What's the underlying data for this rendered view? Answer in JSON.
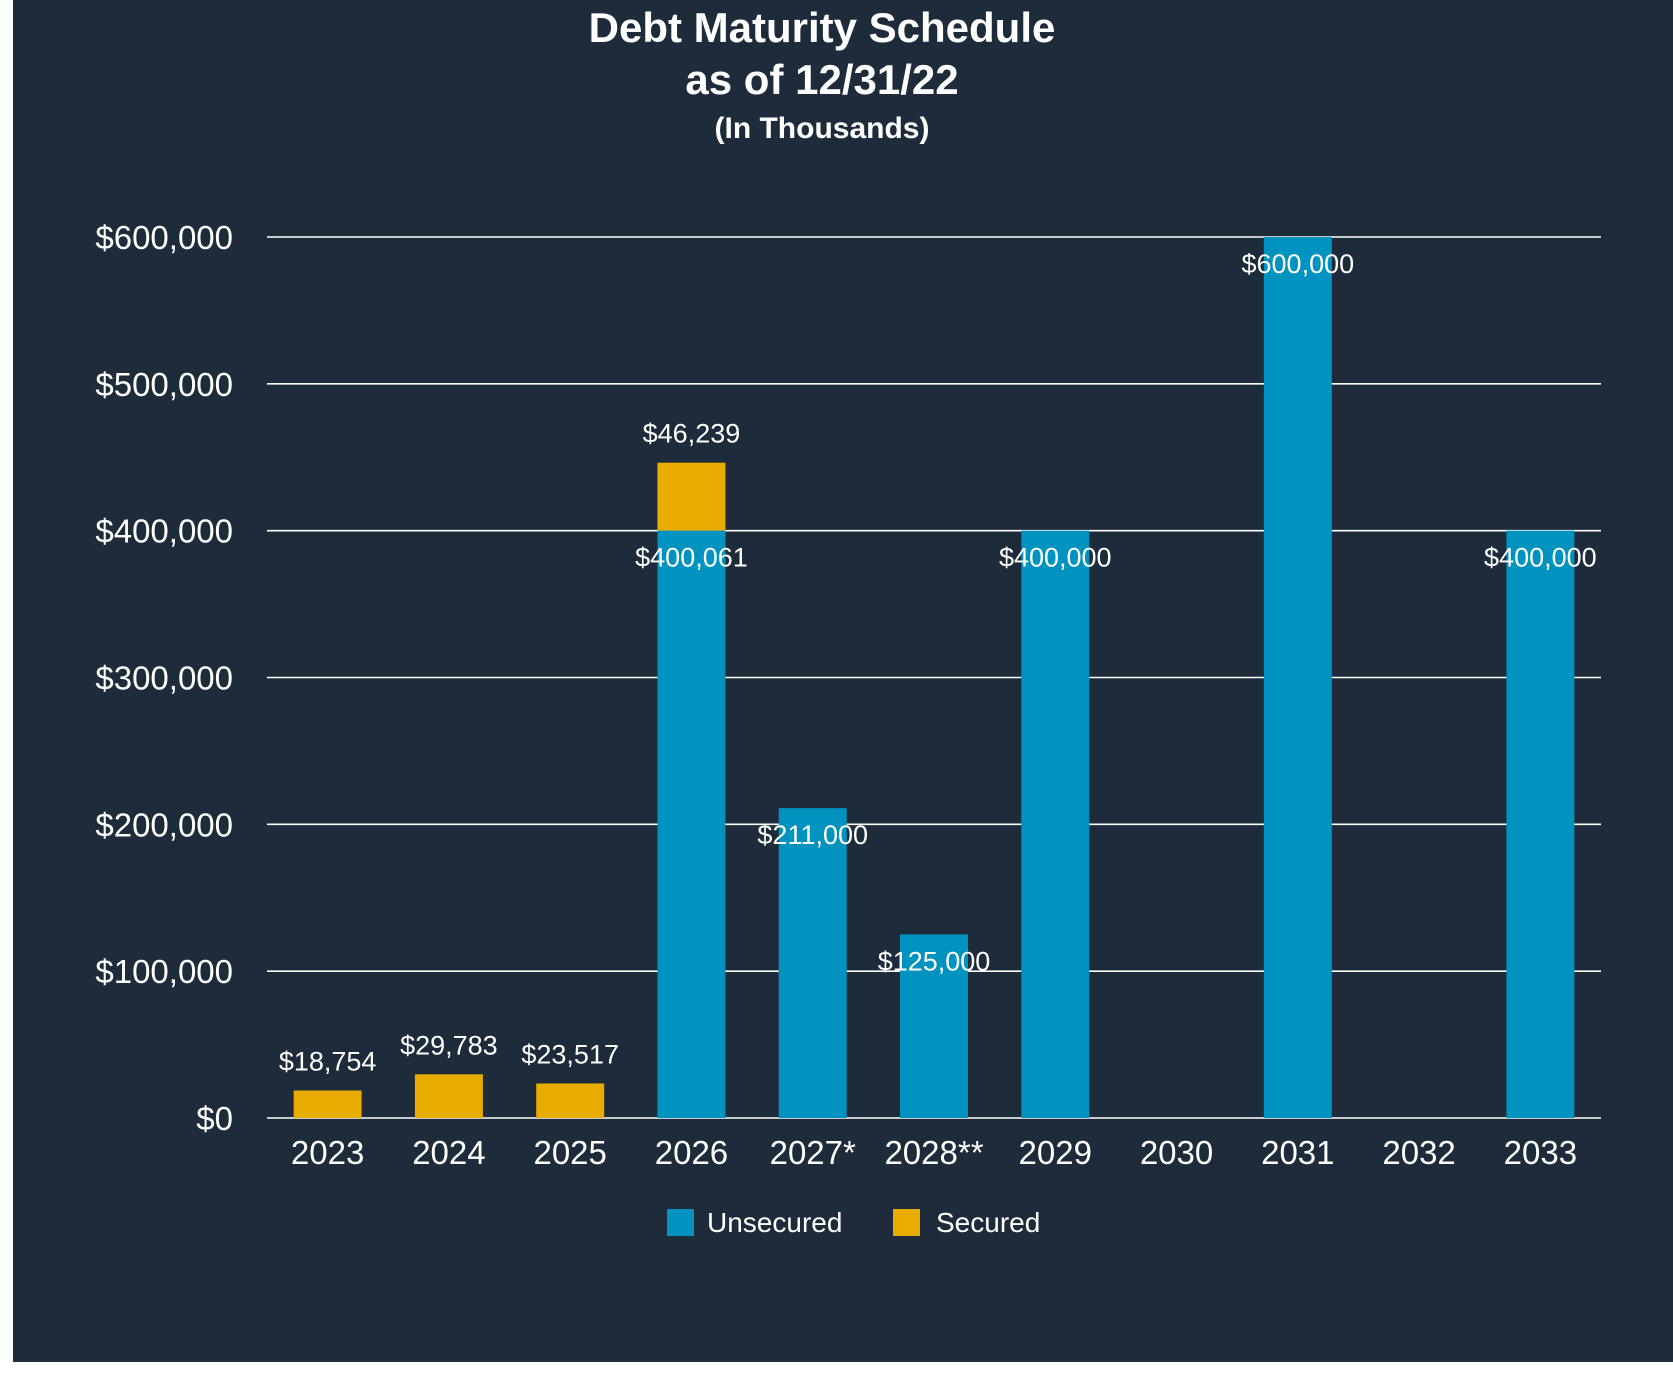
{
  "chart_data": {
    "type": "bar",
    "stacked": true,
    "title": [
      "Debt Maturity Schedule",
      "as of 12/31/22"
    ],
    "subtitle": "(In Thousands)",
    "xlabel": "",
    "ylabel": "",
    "ylim": [
      0,
      600000
    ],
    "yticks": [
      0,
      100000,
      200000,
      300000,
      400000,
      500000,
      600000
    ],
    "ytick_labels": [
      "$0",
      "$100,000",
      "$200,000",
      "$300,000",
      "$400,000",
      "$500,000",
      "$600,000"
    ],
    "grid": true,
    "legend_position": "bottom-center",
    "categories": [
      "2023",
      "2024",
      "2025",
      "2026",
      "2027*",
      "2028**",
      "2029",
      "2030",
      "2031",
      "2032",
      "2033"
    ],
    "series": [
      {
        "name": "Unsecured",
        "color": "#0093bf",
        "values": [
          0,
          0,
          0,
          400061,
          211000,
          125000,
          400000,
          0,
          600000,
          0,
          400000
        ],
        "labels": [
          "",
          "",
          "",
          "$400,061",
          "$211,000",
          "$125,000",
          "$400,000",
          "",
          "$600,000",
          "",
          "$400,000"
        ]
      },
      {
        "name": "Secured",
        "color": "#e8ab00",
        "values": [
          18754,
          29783,
          23517,
          46239,
          0,
          0,
          0,
          0,
          0,
          0,
          0
        ],
        "labels": [
          "$18,754",
          "$29,783",
          "$23,517",
          "$46,239",
          "",
          "",
          "",
          "",
          "",
          "",
          ""
        ]
      }
    ],
    "colors": {
      "background": "#1e2b3a",
      "gridline": "#ffffff",
      "text": "#ffffff"
    }
  }
}
